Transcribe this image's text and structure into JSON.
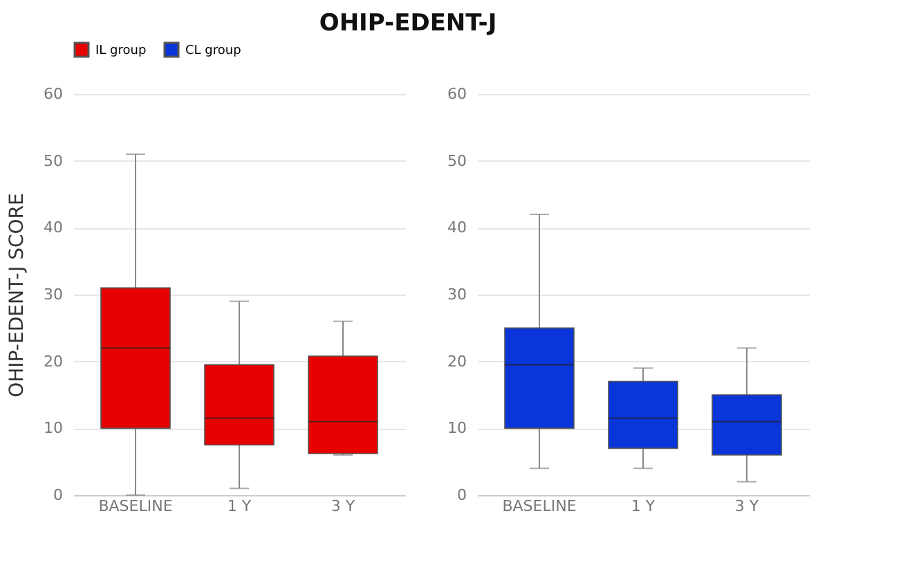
{
  "chart_data": [
    {
      "type": "box",
      "title": "OHIP-EDENT-J",
      "ylabel": "OHIP-EDENT-J SCORE",
      "categories": [
        "BASELINE",
        "1 Y",
        "3 Y"
      ],
      "ylim": [
        0,
        60
      ],
      "yticks": [
        0,
        10,
        20,
        30,
        40,
        50,
        60
      ],
      "grid": "y",
      "legend": "top",
      "series": [
        {
          "name": "IL group",
          "color": "#e60000",
          "boxes": [
            {
              "low": 0,
              "q1": 10,
              "median": 22,
              "q3": 31,
              "high": 51
            },
            {
              "low": 1,
              "q1": 7.5,
              "median": 11.5,
              "q3": 19.5,
              "high": 29
            },
            {
              "low": 6,
              "q1": 6.2,
              "median": 11,
              "q3": 20.8,
              "high": 26
            }
          ]
        }
      ]
    },
    {
      "type": "box",
      "categories": [
        "BASELINE",
        "1 Y",
        "3 Y"
      ],
      "ylim": [
        0,
        60
      ],
      "yticks": [
        0,
        10,
        20,
        30,
        40,
        50,
        60
      ],
      "grid": "y",
      "legend": "top",
      "series": [
        {
          "name": "CL group",
          "color": "#0a35d8",
          "boxes": [
            {
              "low": 4,
              "q1": 10,
              "median": 19.5,
              "q3": 25,
              "high": 42
            },
            {
              "low": 4,
              "q1": 7,
              "median": 11.5,
              "q3": 17,
              "high": 19
            },
            {
              "low": 2,
              "q1": 6,
              "median": 11,
              "q3": 15,
              "high": 22
            }
          ]
        }
      ]
    }
  ]
}
